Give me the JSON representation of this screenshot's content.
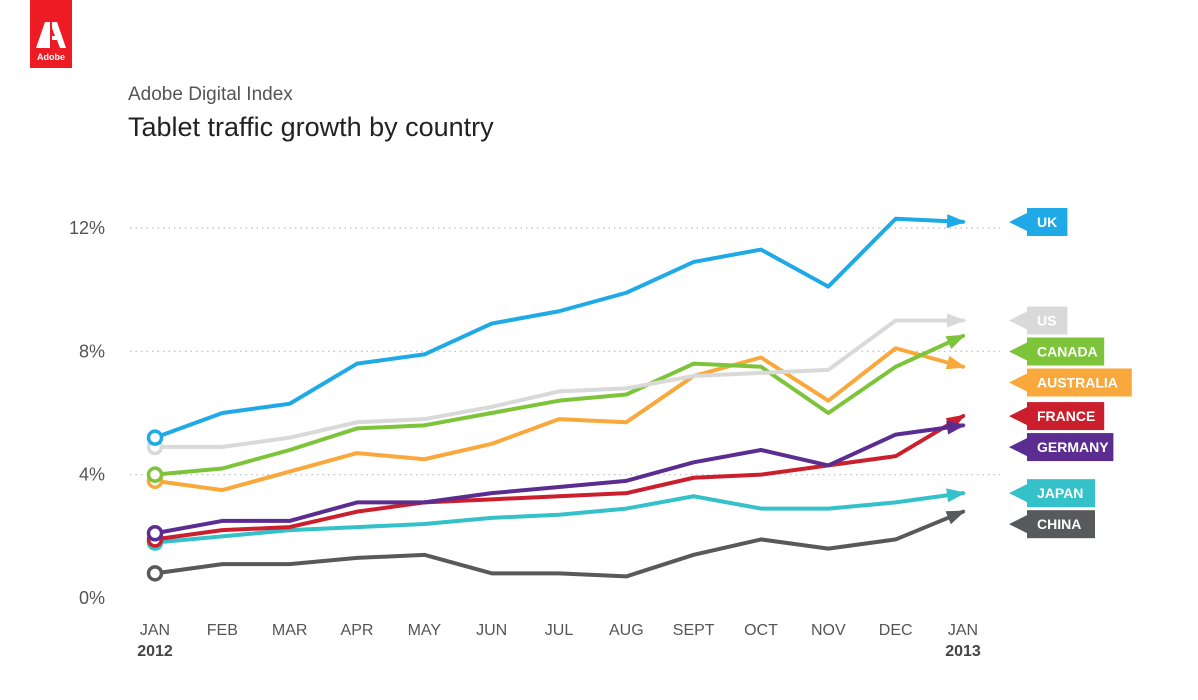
{
  "brand": {
    "logo_text": "Adobe",
    "color": "#ed1c24"
  },
  "header": {
    "subtitle": "Adobe Digital Index"
  },
  "chart_data": {
    "type": "line",
    "title": "Tablet traffic growth by country",
    "y_unit": "%",
    "ylim": [
      0,
      12
    ],
    "yticks": [
      0,
      4,
      8,
      12
    ],
    "ytick_labels": [
      "0%",
      "4%",
      "8%",
      "12%"
    ],
    "categories": [
      "JAN",
      "FEB",
      "MAR",
      "APR",
      "MAY",
      "JUN",
      "JUL",
      "AUG",
      "SEPT",
      "OCT",
      "NOV",
      "DEC",
      "JAN"
    ],
    "year_labels": [
      {
        "index": 0,
        "label": "2012"
      },
      {
        "index": 12,
        "label": "2013"
      }
    ],
    "grid": "dotted horizontal lines at 4%, 8%, 12%",
    "legend": "right-side labels at line ends",
    "series": [
      {
        "name": "UK",
        "color": "#1fa9e6",
        "values": [
          5.2,
          6.0,
          6.3,
          7.6,
          7.9,
          8.9,
          9.3,
          9.9,
          10.9,
          11.3,
          10.1,
          12.3,
          12.2
        ]
      },
      {
        "name": "US",
        "color": "#d9d9d9",
        "values": [
          4.9,
          4.9,
          5.2,
          5.7,
          5.8,
          6.2,
          6.7,
          6.8,
          7.2,
          7.3,
          7.4,
          9.0,
          9.0
        ]
      },
      {
        "name": "CANADA",
        "color": "#7dc43b",
        "values": [
          4.0,
          4.2,
          4.8,
          5.5,
          5.6,
          6.0,
          6.4,
          6.6,
          7.6,
          7.5,
          6.0,
          7.5,
          8.5
        ]
      },
      {
        "name": "AUSTRALIA",
        "color": "#f9a93b",
        "values": [
          3.8,
          3.5,
          4.1,
          4.7,
          4.5,
          5.0,
          5.8,
          5.7,
          7.2,
          7.8,
          6.4,
          8.1,
          7.5
        ]
      },
      {
        "name": "FRANCE",
        "color": "#cc1f2e",
        "values": [
          1.9,
          2.2,
          2.3,
          2.8,
          3.1,
          3.2,
          3.3,
          3.4,
          3.9,
          4.0,
          4.3,
          4.6,
          5.9
        ]
      },
      {
        "name": "GERMANY",
        "color": "#5c2d91",
        "values": [
          2.1,
          2.5,
          2.5,
          3.1,
          3.1,
          3.4,
          3.6,
          3.8,
          4.4,
          4.8,
          4.3,
          5.3,
          5.6
        ]
      },
      {
        "name": "JAPAN",
        "color": "#34c1c9",
        "values": [
          1.8,
          2.0,
          2.2,
          2.3,
          2.4,
          2.6,
          2.7,
          2.9,
          3.3,
          2.9,
          2.9,
          3.1,
          3.4
        ]
      },
      {
        "name": "CHINA",
        "color": "#58595b",
        "values": [
          0.8,
          1.1,
          1.1,
          1.3,
          1.4,
          0.8,
          0.8,
          0.7,
          1.4,
          1.9,
          1.6,
          1.9,
          2.8
        ]
      }
    ]
  }
}
